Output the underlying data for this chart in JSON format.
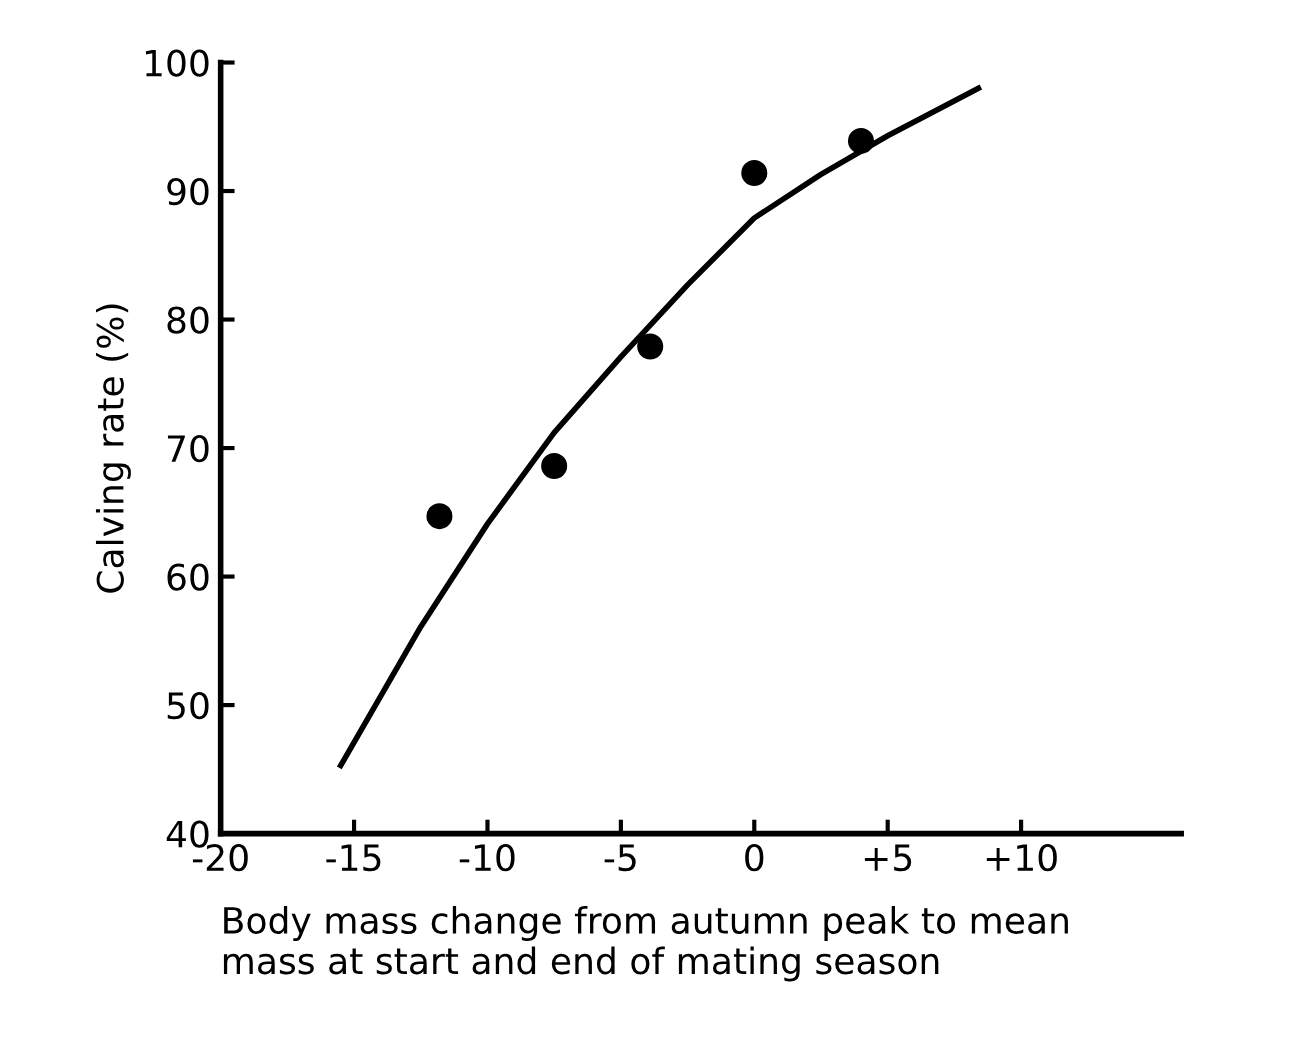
{
  "chart_data": {
    "type": "scatter",
    "xlabel": "Body mass change from autumn peak to mean\nmass at start and end of mating season",
    "ylabel": "Calving rate (%)",
    "xlim": [
      -20,
      16
    ],
    "xticks": [
      -20,
      -15,
      -10,
      -5,
      0,
      {
        "value": 5,
        "label": "+5"
      },
      {
        "value": 10,
        "label": "+10"
      }
    ],
    "ylim": [
      40,
      100
    ],
    "yticks": [
      40,
      50,
      60,
      70,
      80,
      90,
      100
    ],
    "grid": false,
    "legend": false,
    "series": [
      {
        "color": "#000000",
        "marker": "circle",
        "x": [
          -11.8,
          -7.5,
          -3.9,
          0,
          4.0
        ],
        "values": [
          64.7,
          68.6,
          77.9,
          91.4,
          93.9
        ]
      },
      {
        "type": "line",
        "color": "#000000",
        "marker": "none",
        "line_style": "solid",
        "x": [
          -15.5,
          -12.5,
          -10,
          -7.5,
          -5,
          -2.5,
          0,
          2.5,
          5,
          8.4
        ],
        "values": [
          45.3,
          56.1,
          64.1,
          71.2,
          77.1,
          82.7,
          87.9,
          91.3,
          94.3,
          98.0
        ]
      }
    ]
  }
}
